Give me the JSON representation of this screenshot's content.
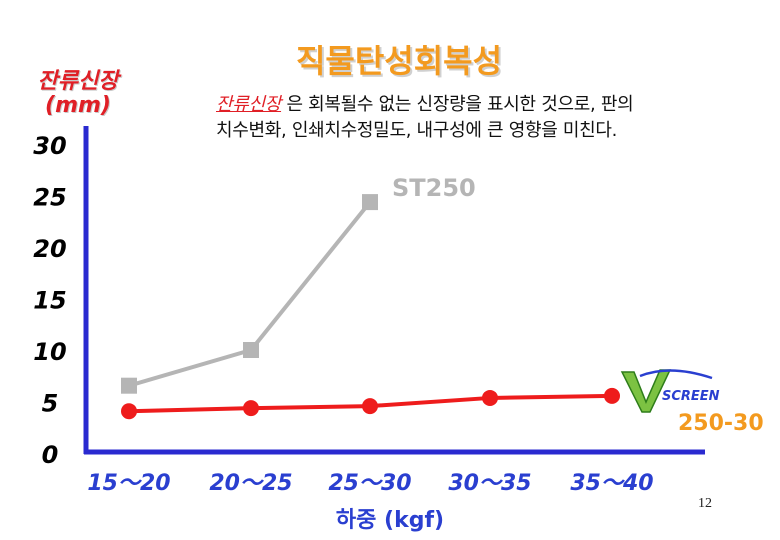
{
  "page": {
    "title": "직물탄성회복성",
    "note_em": "잔류신장",
    "note_line1_rest": " 은 회복될수 없는 신장량을 표시한 것으로, 판의",
    "note_line2": "치수변화, 인쇄치수정밀도, 내구성에 큰 영향을 미친다.",
    "page_number": "12"
  },
  "colors": {
    "axis": "#2a2ad0",
    "st250": "#b5b5b5",
    "vscreen": "#ee1c1c",
    "title": "#f39a1f",
    "accent": "#e01f26"
  },
  "logo": {
    "brand": "SCREEN",
    "icon": "vscreen-logo-icon"
  },
  "chart_data": {
    "type": "line",
    "title": "",
    "ylabel_line1": "잔류신장",
    "ylabel_line2": "(mm)",
    "xlabel": "하중 (kgf)",
    "categories": [
      "15～20",
      "20～25",
      "25～30",
      "30～35",
      "35～40"
    ],
    "ylim": [
      0,
      30
    ],
    "yticks": [
      "0",
      "5",
      "10",
      "15",
      "20",
      "25",
      "30"
    ],
    "grid": false,
    "series": [
      {
        "name": "ST250",
        "values": [
          6.5,
          10,
          24.5,
          null,
          null
        ]
      },
      {
        "name": "250-30",
        "values": [
          4,
          4.3,
          4.5,
          5.3,
          5.5
        ]
      }
    ]
  }
}
